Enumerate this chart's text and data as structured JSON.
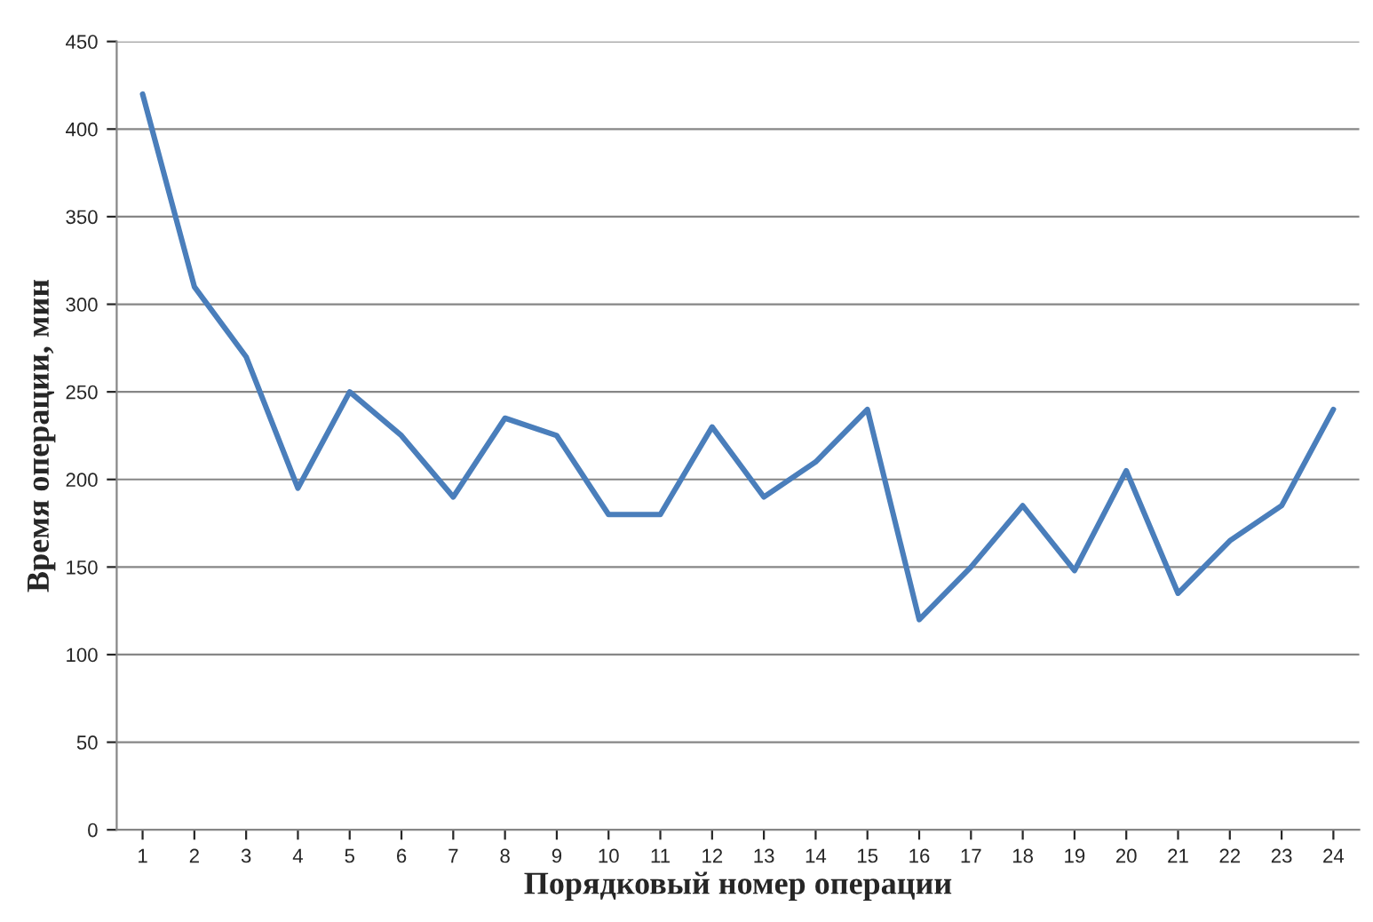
{
  "chart_data": {
    "type": "line",
    "xlabel": "Порядковый номер операции",
    "ylabel": "Время операции, мин",
    "categories": [
      "1",
      "2",
      "3",
      "4",
      "5",
      "6",
      "7",
      "8",
      "9",
      "10",
      "11",
      "12",
      "13",
      "14",
      "15",
      "16",
      "17",
      "18",
      "19",
      "20",
      "21",
      "22",
      "23",
      "24"
    ],
    "series": [
      {
        "color": "#4a7ebb",
        "values": [
          420,
          310,
          270,
          195,
          250,
          225,
          190,
          235,
          225,
          180,
          180,
          230,
          190,
          210,
          240,
          120,
          150,
          185,
          148,
          205,
          135,
          165,
          185,
          240
        ]
      }
    ],
    "ylim": [
      0,
      450
    ],
    "yticks": [
      0,
      50,
      100,
      150,
      200,
      250,
      300,
      350,
      400,
      450
    ],
    "grid": "y",
    "legend": false,
    "marker": "none",
    "line_style": "solid"
  }
}
